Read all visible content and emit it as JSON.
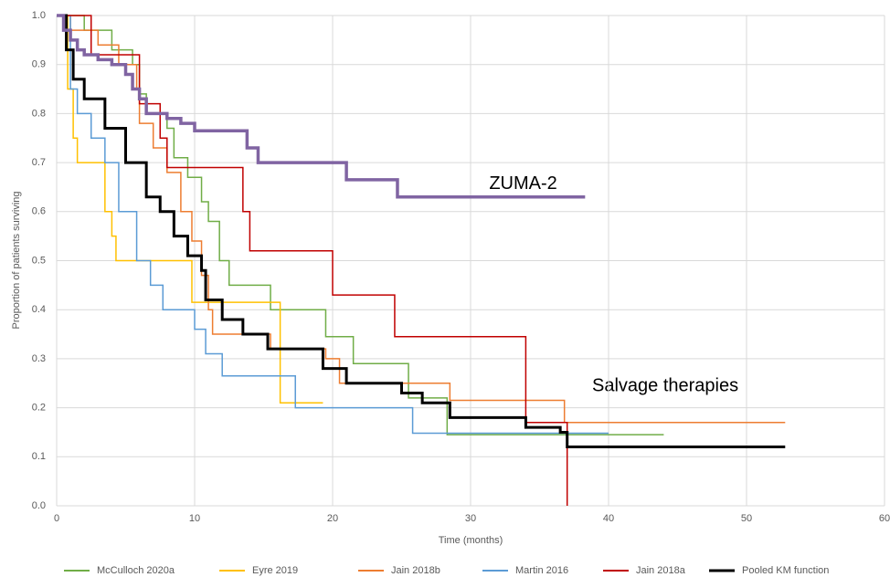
{
  "chart_data": {
    "type": "line",
    "step": true,
    "xlabel": "Time (months)",
    "ylabel": "Proportion of patients surviving",
    "xlim": [
      0,
      60
    ],
    "xticks": [
      0,
      10,
      20,
      30,
      40,
      50,
      60
    ],
    "ylim": [
      0,
      1
    ],
    "yticks": [
      {
        "value": 0,
        "label": "0.0"
      },
      0.1,
      0.2,
      0.3,
      0.4,
      0.5,
      0.6,
      0.7,
      0.8,
      0.9,
      {
        "value": 1,
        "label": "1.0"
      }
    ],
    "grid": true,
    "legend": "bottom",
    "annotations": [
      "Salvage therapies"
    ],
    "series": [
      {
        "name": "McCulloch 2020a",
        "color": "#70ad47",
        "x": [
          0,
          2,
          2,
          4,
          4,
          5.5,
          5.5,
          6,
          6,
          6.5,
          6.5,
          8,
          8,
          8.5,
          8.5,
          9.5,
          9.5,
          10.5,
          10.5,
          11,
          11,
          11.8,
          11.8,
          12.5,
          12.5,
          15.5,
          15.5,
          19.5,
          19.5,
          21.5,
          21.5,
          25.5,
          25.5,
          28.3,
          28.3,
          44
        ],
        "values": [
          1,
          1,
          0.97,
          0.97,
          0.93,
          0.93,
          0.9,
          0.9,
          0.84,
          0.84,
          0.8,
          0.8,
          0.77,
          0.77,
          0.71,
          0.71,
          0.67,
          0.67,
          0.62,
          0.62,
          0.58,
          0.58,
          0.5,
          0.5,
          0.45,
          0.45,
          0.4,
          0.4,
          0.345,
          0.345,
          0.29,
          0.29,
          0.22,
          0.22,
          0.145,
          0.145
        ]
      },
      {
        "name": "Eyre 2019",
        "color": "#ffc000",
        "x": [
          0,
          0.8,
          0.8,
          1.2,
          1.2,
          1.5,
          1.5,
          3.5,
          3.5,
          4,
          4,
          4.3,
          4.3,
          9.8,
          9.8,
          16.2,
          16.2,
          19.3
        ],
        "values": [
          1,
          1,
          0.85,
          0.85,
          0.75,
          0.75,
          0.7,
          0.7,
          0.6,
          0.6,
          0.55,
          0.55,
          0.5,
          0.5,
          0.415,
          0.415,
          0.21,
          0.21
        ]
      },
      {
        "name": "Jain 2018b",
        "color": "#ed7d31",
        "x": [
          0,
          1,
          1,
          3,
          3,
          4.5,
          4.5,
          5.8,
          5.8,
          6,
          6,
          7,
          7,
          8,
          8,
          9,
          9,
          9.8,
          9.8,
          10.5,
          10.5,
          11,
          11,
          11.3,
          11.3,
          15.5,
          15.5,
          19.5,
          19.5,
          20.5,
          20.5,
          28.5,
          28.5,
          36.8,
          36.8,
          52.8
        ],
        "values": [
          1,
          1,
          0.97,
          0.97,
          0.94,
          0.94,
          0.9,
          0.9,
          0.85,
          0.85,
          0.78,
          0.78,
          0.73,
          0.73,
          0.68,
          0.68,
          0.6,
          0.6,
          0.54,
          0.54,
          0.47,
          0.47,
          0.4,
          0.4,
          0.35,
          0.35,
          0.32,
          0.32,
          0.3,
          0.3,
          0.25,
          0.25,
          0.215,
          0.215,
          0.17,
          0.17
        ]
      },
      {
        "name": "Martin 2016",
        "color": "#5b9bd5",
        "x": [
          0,
          1,
          1,
          1.5,
          1.5,
          2.5,
          2.5,
          3.5,
          3.5,
          4.5,
          4.5,
          5.8,
          5.8,
          6.8,
          6.8,
          7.7,
          7.7,
          10,
          10,
          10.8,
          10.8,
          12,
          12,
          17.3,
          17.3,
          25.8,
          25.8,
          40
        ],
        "values": [
          1,
          1,
          0.85,
          0.85,
          0.8,
          0.8,
          0.75,
          0.75,
          0.7,
          0.7,
          0.6,
          0.6,
          0.5,
          0.5,
          0.45,
          0.45,
          0.4,
          0.4,
          0.36,
          0.36,
          0.31,
          0.31,
          0.265,
          0.265,
          0.2,
          0.2,
          0.148,
          0.148
        ]
      },
      {
        "name": "Jain 2018a",
        "color": "#c00000",
        "x": [
          0,
          2.5,
          2.5,
          6,
          6,
          7.5,
          7.5,
          8,
          8,
          13.5,
          13.5,
          14,
          14,
          20,
          20,
          24.5,
          24.5,
          34,
          34,
          37,
          37
        ],
        "values": [
          1,
          1,
          0.92,
          0.92,
          0.82,
          0.82,
          0.75,
          0.75,
          0.69,
          0.69,
          0.6,
          0.6,
          0.52,
          0.52,
          0.43,
          0.43,
          0.345,
          0.345,
          0.17,
          0.17,
          0
        ]
      },
      {
        "name": "Pooled KM function",
        "color": "#000000",
        "width": 3,
        "x": [
          0,
          0.7,
          0.7,
          1.2,
          1.2,
          2,
          2,
          3.5,
          3.5,
          5,
          5,
          6.5,
          6.5,
          7.5,
          7.5,
          8.5,
          8.5,
          9.5,
          9.5,
          10.5,
          10.5,
          10.8,
          10.8,
          12,
          12,
          13.5,
          13.5,
          15.3,
          15.3,
          19.3,
          19.3,
          21,
          21,
          25,
          25,
          26.5,
          26.5,
          28.5,
          28.5,
          34,
          34,
          36.5,
          36.5,
          37,
          37,
          52.8
        ],
        "values": [
          1,
          1,
          0.93,
          0.93,
          0.87,
          0.87,
          0.83,
          0.83,
          0.77,
          0.77,
          0.7,
          0.7,
          0.63,
          0.63,
          0.6,
          0.6,
          0.55,
          0.55,
          0.51,
          0.51,
          0.48,
          0.48,
          0.42,
          0.42,
          0.38,
          0.38,
          0.35,
          0.35,
          0.32,
          0.32,
          0.28,
          0.28,
          0.25,
          0.25,
          0.23,
          0.23,
          0.21,
          0.21,
          0.18,
          0.18,
          0.16,
          0.16,
          0.15,
          0.15,
          0.12,
          0.12
        ]
      },
      {
        "name": "ZUMA-2",
        "color": "#8064a2",
        "width": 3.5,
        "legend": false,
        "x": [
          0,
          0.5,
          0.5,
          1,
          1,
          1.5,
          1.5,
          2,
          2,
          3,
          3,
          4,
          4,
          5,
          5,
          5.5,
          5.5,
          6,
          6,
          6.5,
          6.5,
          8,
          8,
          9,
          9,
          10,
          10,
          13.8,
          13.8,
          14.6,
          14.6,
          21,
          21,
          24.7,
          24.7,
          38.3
        ],
        "values": [
          1,
          1,
          0.97,
          0.97,
          0.95,
          0.95,
          0.93,
          0.93,
          0.92,
          0.92,
          0.91,
          0.91,
          0.9,
          0.9,
          0.88,
          0.88,
          0.85,
          0.85,
          0.83,
          0.83,
          0.8,
          0.8,
          0.79,
          0.79,
          0.78,
          0.78,
          0.765,
          0.765,
          0.73,
          0.73,
          0.7,
          0.7,
          0.665,
          0.665,
          0.63,
          0.63
        ]
      }
    ]
  }
}
